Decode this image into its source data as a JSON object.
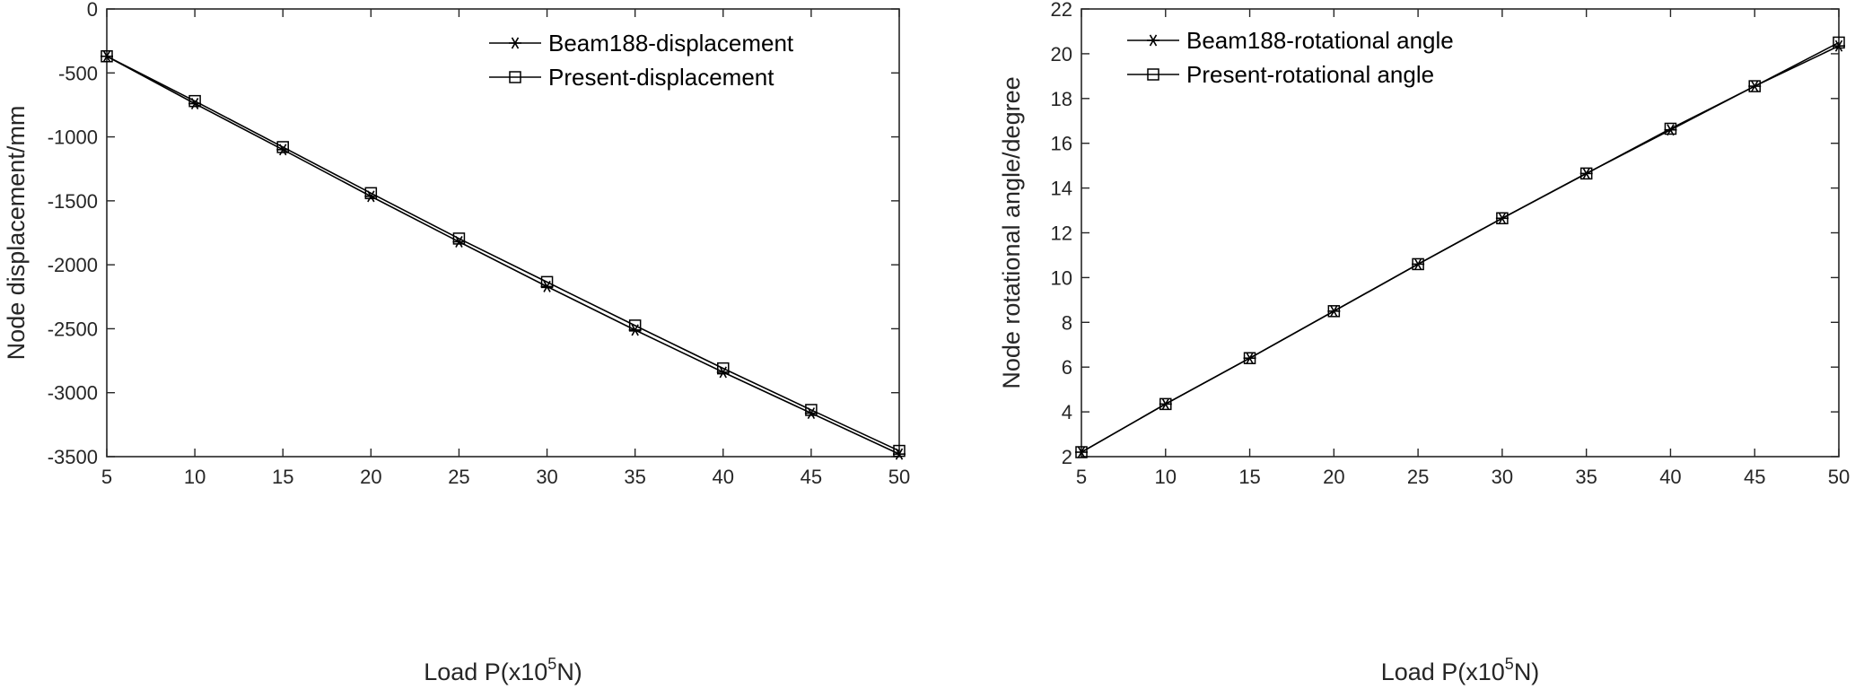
{
  "chart_data": [
    {
      "type": "line",
      "title": "",
      "xlabel": "Load P(x10",
      "xlabel_sup": "5",
      "xlabel_tail": "N)",
      "ylabel": "Node displacement/mm",
      "xlim": [
        5,
        50
      ],
      "ylim": [
        -3500,
        0
      ],
      "xticks": [
        "5",
        "10",
        "15",
        "20",
        "25",
        "30",
        "35",
        "40",
        "45",
        "50"
      ],
      "yticks": [
        "0",
        "-500",
        "-1000",
        "-1500",
        "-2000",
        "-2500",
        "-3000",
        "-3500"
      ],
      "grid": false,
      "legend_position": "top-right",
      "x": [
        5,
        10,
        15,
        20,
        25,
        30,
        35,
        40,
        45,
        50
      ],
      "series": [
        {
          "name": "Beam188-displacement",
          "marker": "star",
          "values": [
            -370,
            -740,
            -1100,
            -1465,
            -1820,
            -2170,
            -2510,
            -2840,
            -3160,
            -3480
          ]
        },
        {
          "name": "Present-displacement",
          "marker": "square",
          "values": [
            -370,
            -720,
            -1080,
            -1440,
            -1795,
            -2135,
            -2475,
            -2810,
            -3135,
            -3455
          ]
        }
      ]
    },
    {
      "type": "line",
      "title": "",
      "xlabel": "Load P(x10",
      "xlabel_sup": "5",
      "xlabel_tail": "N)",
      "ylabel": "Node rotational angle/degree",
      "xlim": [
        5,
        50
      ],
      "ylim": [
        2,
        22
      ],
      "xticks": [
        "5",
        "10",
        "15",
        "20",
        "25",
        "30",
        "35",
        "40",
        "45",
        "50"
      ],
      "yticks": [
        "2",
        "4",
        "6",
        "8",
        "10",
        "12",
        "14",
        "16",
        "18",
        "20",
        "22"
      ],
      "grid": false,
      "legend_position": "top-left",
      "x": [
        5,
        10,
        15,
        20,
        25,
        30,
        35,
        40,
        45,
        50
      ],
      "series": [
        {
          "name": "Beam188-rotational angle",
          "marker": "star",
          "values": [
            2.2,
            4.35,
            6.4,
            8.5,
            10.6,
            12.65,
            14.65,
            16.6,
            18.55,
            20.35
          ]
        },
        {
          "name": "Present-rotational angle",
          "marker": "square",
          "values": [
            2.2,
            4.35,
            6.4,
            8.5,
            10.6,
            12.65,
            14.65,
            16.65,
            18.55,
            20.5
          ]
        }
      ]
    }
  ]
}
